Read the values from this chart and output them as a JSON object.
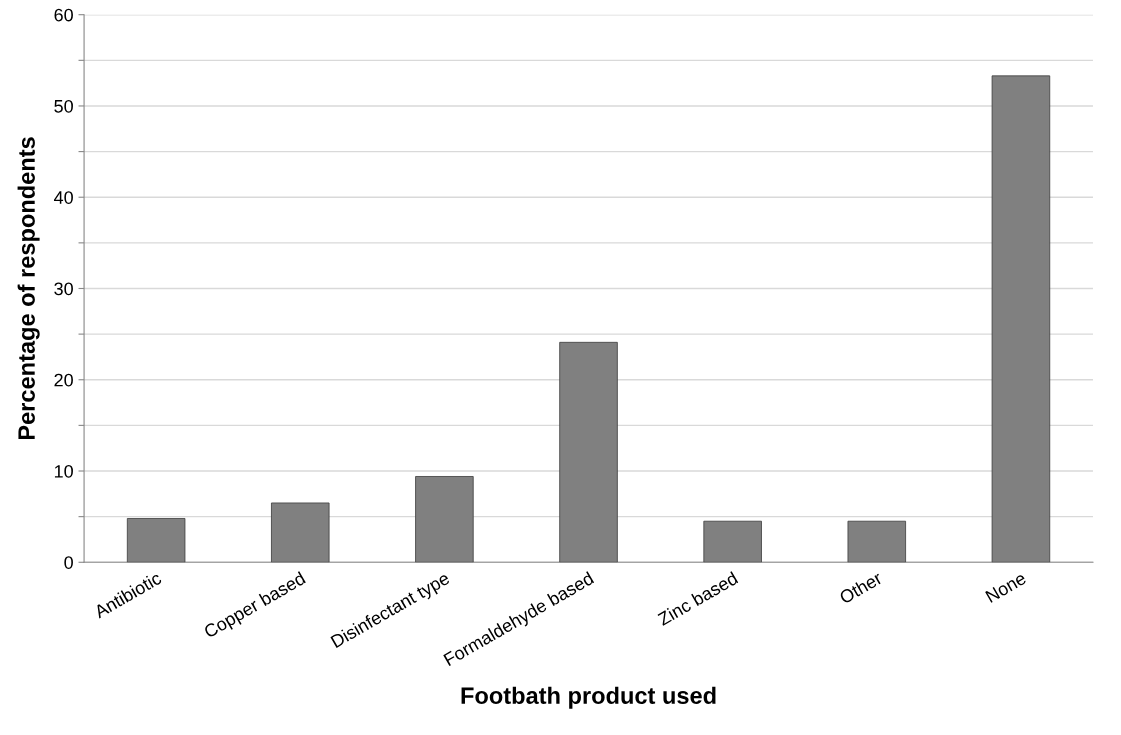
{
  "chart_data": {
    "type": "bar",
    "xlabel": "Footbath product used",
    "ylabel": "Percentage of respondents",
    "categories": [
      "Antibiotic",
      "Copper based",
      "Disinfectant type",
      "Formaldehyde based",
      "Zinc based",
      "Other",
      "None"
    ],
    "values": [
      4.8,
      6.5,
      9.4,
      24.1,
      4.5,
      4.5,
      53.3
    ],
    "color": "#808080",
    "ylim": [
      0,
      60
    ],
    "yticks": [
      0,
      {
        "value": 5,
        "label": null
      },
      10,
      {
        "value": 15,
        "label": null
      },
      20,
      {
        "value": 25,
        "label": null
      },
      30,
      {
        "value": 35,
        "label": null
      },
      40,
      {
        "value": 45,
        "label": null
      },
      50,
      {
        "value": 55,
        "label": null
      },
      60
    ],
    "grid": "y"
  }
}
